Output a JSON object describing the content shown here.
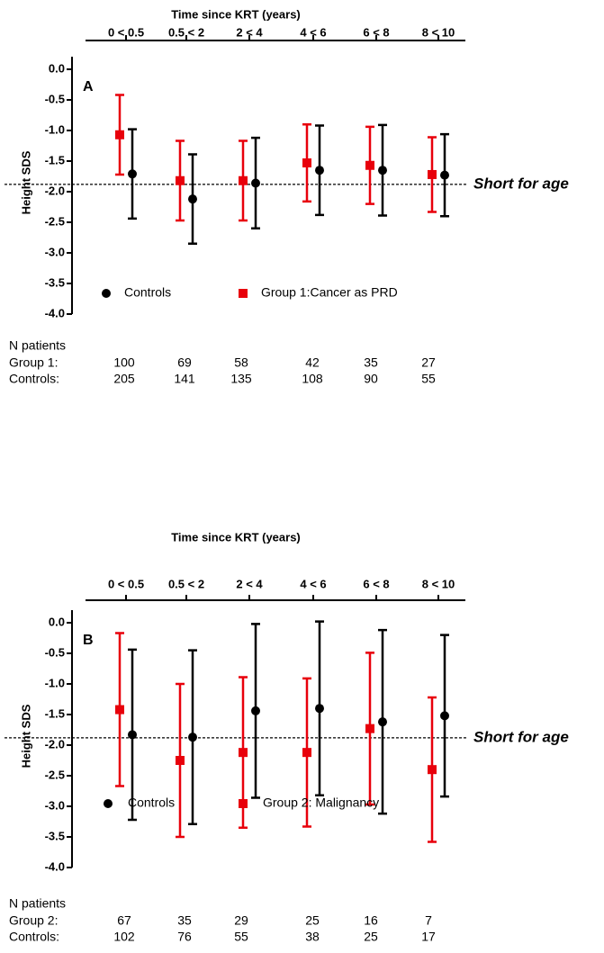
{
  "chart_data": [
    {
      "type": "errorbar",
      "panel_label": "A",
      "x_title": "Time since KRT (years)",
      "categories": [
        "0 < 0.5",
        "0.5 < 2",
        "2 < 4",
        "4 < 6",
        "6 < 8",
        "8 < 10"
      ],
      "ylabel": "Height  SDS",
      "ylim": [
        -4,
        0
      ],
      "yticks": [
        {
          "value": 0,
          "label": "0.0"
        },
        -0.5,
        {
          "value": -1,
          "label": "-1.0"
        },
        -1.5,
        {
          "value": -2,
          "label": "-2.0"
        },
        -2.5,
        {
          "value": -3,
          "label": "-3.0"
        },
        -3.5,
        {
          "value": -4,
          "label": "-4.0"
        }
      ],
      "series": [
        {
          "name": "Controls",
          "color": "#000000",
          "marker": "circle",
          "values": [
            -1.71,
            -2.12,
            -1.86,
            -1.65,
            -1.65,
            -1.73
          ],
          "errors": [
            0.73,
            0.73,
            0.74,
            0.73,
            0.74,
            0.67
          ]
        },
        {
          "name": "Group 1:Cancer as PRD",
          "color": "#e8000b",
          "marker": "square",
          "values": [
            -1.07,
            -1.82,
            -1.82,
            -1.53,
            -1.57,
            -1.72
          ],
          "errors": [
            0.65,
            0.65,
            0.65,
            0.63,
            0.63,
            0.61
          ]
        }
      ],
      "reference_line": {
        "value": -1.88,
        "label": "Short for age"
      },
      "n_title": "N patients",
      "n_rows": [
        {
          "label": "Group 1:",
          "values": [
            100,
            69,
            58,
            42,
            35,
            27
          ]
        },
        {
          "label": "Controls:",
          "values": [
            205,
            141,
            135,
            108,
            90,
            55
          ]
        }
      ]
    },
    {
      "type": "errorbar",
      "panel_label": "B",
      "x_title": "Time since KRT (years)",
      "categories": [
        "0 < 0.5",
        "0.5 < 2",
        "2 < 4",
        "4 < 6",
        "6 < 8",
        "8 < 10"
      ],
      "ylabel": "Height  SDS",
      "ylim": [
        -4,
        0
      ],
      "yticks": [
        {
          "value": 0,
          "label": "0.0"
        },
        -0.5,
        {
          "value": -1,
          "label": "-1.0"
        },
        -1.5,
        {
          "value": -2,
          "label": "-2.0"
        },
        -2.5,
        {
          "value": -3,
          "label": "-3.0"
        },
        -3.5,
        {
          "value": -4,
          "label": "-4.0"
        }
      ],
      "series": [
        {
          "name": "Controls",
          "color": "#000000",
          "marker": "circle",
          "values": [
            -1.83,
            -1.87,
            -1.44,
            -1.4,
            -1.62,
            -1.52
          ],
          "errors": [
            1.39,
            1.42,
            1.42,
            1.42,
            1.5,
            1.32
          ]
        },
        {
          "name": "Group 2: Malignancy",
          "color": "#e8000b",
          "marker": "square",
          "values": [
            -1.42,
            -2.25,
            -2.12,
            -2.12,
            -1.73,
            -2.4
          ],
          "errors": [
            1.25,
            1.25,
            1.23,
            1.21,
            1.24,
            1.18
          ]
        }
      ],
      "reference_line": {
        "value": -1.88,
        "label": "Short for age"
      },
      "n_title": "N patients",
      "n_rows": [
        {
          "label": "Group 2:",
          "values": [
            67,
            35,
            29,
            25,
            16,
            7
          ]
        },
        {
          "label": "Controls:",
          "values": [
            102,
            76,
            55,
            38,
            25,
            17
          ]
        }
      ]
    }
  ]
}
